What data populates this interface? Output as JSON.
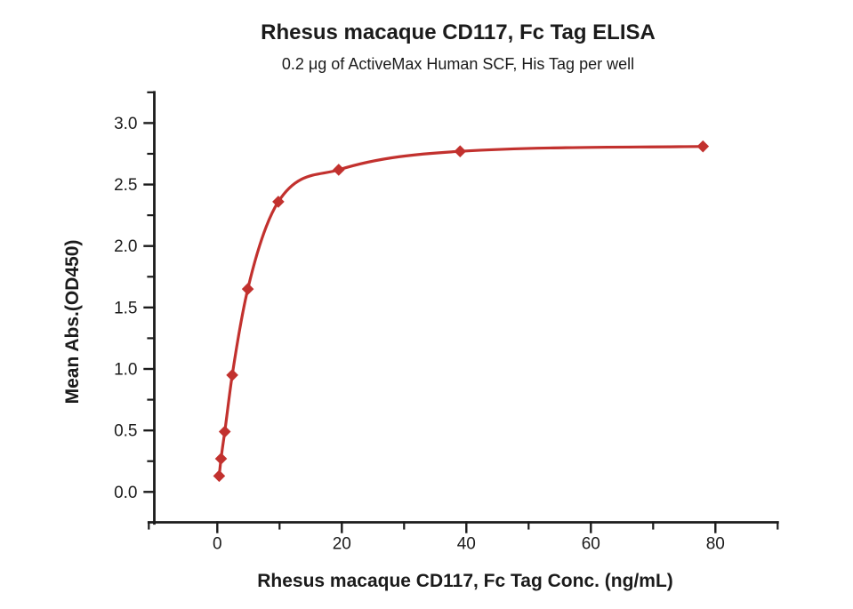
{
  "chart_data": {
    "type": "scatter",
    "title": "Rhesus macaque CD117, Fc Tag ELISA",
    "subtitle": "0.2 μg of ActiveMax Human SCF, His Tag per well",
    "xlabel": "Rhesus macaque CD117, Fc Tag Conc. (ng/mL)",
    "ylabel": "Mean Abs.(OD450)",
    "series": [
      {
        "x": [
          0.3,
          0.6,
          1.2,
          2.4,
          4.9,
          9.8,
          19.5,
          39,
          78
        ],
        "y": [
          0.13,
          0.27,
          0.49,
          0.95,
          1.65,
          2.36,
          2.62,
          2.77,
          2.81
        ],
        "color": "#C2312E",
        "marker": "diamond",
        "line": "smooth"
      }
    ],
    "xlim": [
      -10,
      90
    ],
    "ylim": [
      -0.25,
      3.25
    ],
    "x_ticks": {
      "major_values": [
        0,
        20,
        40,
        60,
        80
      ],
      "major_labels": [
        "0",
        "20",
        "40",
        "60",
        "80"
      ],
      "minor_values": [
        10,
        30,
        50,
        70
      ]
    },
    "y_ticks": {
      "major_values": [
        0.0,
        0.5,
        1.0,
        1.5,
        2.0,
        2.5,
        3.0
      ],
      "major_labels": [
        "0.0",
        "0.5",
        "1.0",
        "1.5",
        "2.0",
        "2.5",
        "3.0"
      ],
      "minor_values": [
        0.25,
        0.75,
        1.25,
        1.75,
        2.25,
        2.75
      ]
    },
    "grid": false,
    "legend": "none",
    "axis_color": "#1b1b1b",
    "background_color": "#ffffff"
  }
}
